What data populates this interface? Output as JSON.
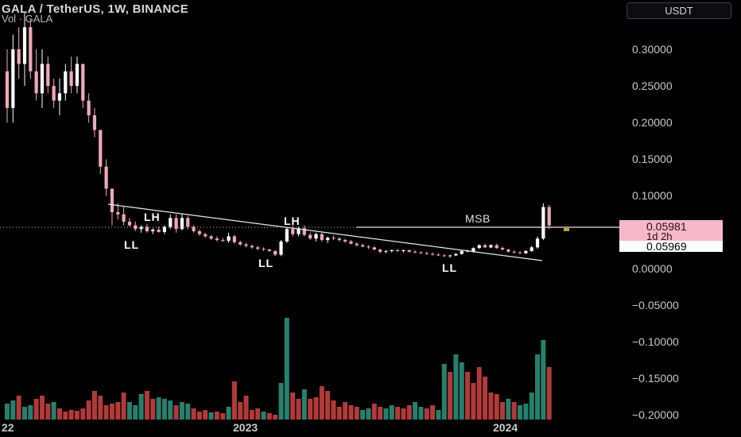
{
  "header": {
    "title": "GALA / TetherUS, 1W, BINANCE",
    "volume_label": "Vol · GALA"
  },
  "currency_button": "USDT",
  "price_axis": [
    "0.30000",
    "0.25000",
    "0.20000",
    "0.15000",
    "0.10000",
    "0.00000",
    "−0.05000",
    "−0.10000",
    "−0.15000",
    "−0.20000"
  ],
  "time_axis": [
    "22",
    "2023",
    "2024"
  ],
  "annotations": {
    "lh_left": "LH",
    "lh_right": "LH",
    "ll_1": "LL",
    "ll_2": "LL",
    "ll_3": "LL",
    "msb": "MSB"
  },
  "price_label": {
    "current": "0.05981",
    "countdown": "1d 2h",
    "last": "0.05969"
  },
  "colors": {
    "up": "#ffffff",
    "down": "#f0a8b8",
    "volume_up": "#26806e",
    "volume_down": "#b23a3a",
    "background": "#000000"
  },
  "chart_data": {
    "type": "candlestick",
    "title": "GALA / TetherUS, 1W, BINANCE",
    "ylim": [
      -0.2,
      0.35
    ],
    "candles": [
      [
        0.27,
        0.3,
        0.2,
        0.22
      ],
      [
        0.22,
        0.32,
        0.2,
        0.3
      ],
      [
        0.3,
        0.33,
        0.26,
        0.28
      ],
      [
        0.28,
        0.35,
        0.25,
        0.33
      ],
      [
        0.33,
        0.34,
        0.26,
        0.27
      ],
      [
        0.27,
        0.3,
        0.23,
        0.24
      ],
      [
        0.24,
        0.3,
        0.22,
        0.28
      ],
      [
        0.28,
        0.29,
        0.24,
        0.25
      ],
      [
        0.25,
        0.26,
        0.22,
        0.23
      ],
      [
        0.23,
        0.26,
        0.21,
        0.24
      ],
      [
        0.24,
        0.28,
        0.23,
        0.27
      ],
      [
        0.27,
        0.29,
        0.24,
        0.25
      ],
      [
        0.25,
        0.29,
        0.24,
        0.28
      ],
      [
        0.28,
        0.28,
        0.22,
        0.23
      ],
      [
        0.23,
        0.24,
        0.2,
        0.21
      ],
      [
        0.21,
        0.22,
        0.18,
        0.19
      ],
      [
        0.19,
        0.19,
        0.13,
        0.14
      ],
      [
        0.14,
        0.15,
        0.1,
        0.11
      ],
      [
        0.11,
        0.11,
        0.06,
        0.078
      ],
      [
        0.078,
        0.09,
        0.068,
        0.075
      ],
      [
        0.075,
        0.085,
        0.06,
        0.065
      ],
      [
        0.065,
        0.07,
        0.058,
        0.06
      ],
      [
        0.06,
        0.065,
        0.052,
        0.055
      ],
      [
        0.055,
        0.06,
        0.05,
        0.058
      ],
      [
        0.058,
        0.062,
        0.05,
        0.052
      ],
      [
        0.052,
        0.056,
        0.048,
        0.054
      ],
      [
        0.054,
        0.058,
        0.05,
        0.051
      ],
      [
        0.051,
        0.06,
        0.048,
        0.058
      ],
      [
        0.058,
        0.075,
        0.055,
        0.07
      ],
      [
        0.07,
        0.075,
        0.05,
        0.055
      ],
      [
        0.055,
        0.075,
        0.053,
        0.07
      ],
      [
        0.07,
        0.073,
        0.055,
        0.058
      ],
      [
        0.058,
        0.06,
        0.05,
        0.052
      ],
      [
        0.052,
        0.054,
        0.046,
        0.048
      ],
      [
        0.048,
        0.05,
        0.043,
        0.045
      ],
      [
        0.045,
        0.047,
        0.04,
        0.042
      ],
      [
        0.042,
        0.045,
        0.038,
        0.04
      ],
      [
        0.04,
        0.043,
        0.037,
        0.039
      ],
      [
        0.039,
        0.05,
        0.036,
        0.045
      ],
      [
        0.045,
        0.047,
        0.035,
        0.037
      ],
      [
        0.037,
        0.039,
        0.032,
        0.034
      ],
      [
        0.034,
        0.036,
        0.03,
        0.032
      ],
      [
        0.032,
        0.034,
        0.028,
        0.03
      ],
      [
        0.03,
        0.032,
        0.026,
        0.028
      ],
      [
        0.028,
        0.03,
        0.025,
        0.027
      ],
      [
        0.027,
        0.028,
        0.024,
        0.025
      ],
      [
        0.025,
        0.026,
        0.018,
        0.02
      ],
      [
        0.02,
        0.04,
        0.018,
        0.038
      ],
      [
        0.038,
        0.058,
        0.036,
        0.055
      ],
      [
        0.055,
        0.06,
        0.045,
        0.048
      ],
      [
        0.048,
        0.058,
        0.045,
        0.056
      ],
      [
        0.056,
        0.06,
        0.045,
        0.047
      ],
      [
        0.047,
        0.05,
        0.04,
        0.042
      ],
      [
        0.042,
        0.05,
        0.038,
        0.048
      ],
      [
        0.048,
        0.05,
        0.038,
        0.04
      ],
      [
        0.04,
        0.045,
        0.036,
        0.043
      ],
      [
        0.043,
        0.046,
        0.04,
        0.042
      ],
      [
        0.042,
        0.044,
        0.038,
        0.04
      ],
      [
        0.04,
        0.042,
        0.036,
        0.038
      ],
      [
        0.038,
        0.04,
        0.034,
        0.035
      ],
      [
        0.035,
        0.037,
        0.031,
        0.033
      ],
      [
        0.033,
        0.035,
        0.03,
        0.031
      ],
      [
        0.031,
        0.033,
        0.028,
        0.03
      ],
      [
        0.03,
        0.031,
        0.026,
        0.027
      ],
      [
        0.027,
        0.028,
        0.022,
        0.024
      ],
      [
        0.024,
        0.026,
        0.022,
        0.025
      ],
      [
        0.025,
        0.027,
        0.023,
        0.026
      ],
      [
        0.026,
        0.028,
        0.024,
        0.025
      ],
      [
        0.025,
        0.027,
        0.023,
        0.026
      ],
      [
        0.026,
        0.027,
        0.023,
        0.024
      ],
      [
        0.024,
        0.026,
        0.022,
        0.023
      ],
      [
        0.023,
        0.025,
        0.021,
        0.022
      ],
      [
        0.022,
        0.024,
        0.02,
        0.021
      ],
      [
        0.021,
        0.023,
        0.019,
        0.02
      ],
      [
        0.02,
        0.022,
        0.018,
        0.019
      ],
      [
        0.019,
        0.021,
        0.017,
        0.018
      ],
      [
        0.018,
        0.02,
        0.016,
        0.019
      ],
      [
        0.019,
        0.022,
        0.018,
        0.021
      ],
      [
        0.021,
        0.026,
        0.02,
        0.025
      ],
      [
        0.025,
        0.027,
        0.023,
        0.024
      ],
      [
        0.024,
        0.03,
        0.023,
        0.029
      ],
      [
        0.029,
        0.034,
        0.028,
        0.033
      ],
      [
        0.033,
        0.035,
        0.029,
        0.03
      ],
      [
        0.03,
        0.034,
        0.029,
        0.033
      ],
      [
        0.033,
        0.035,
        0.028,
        0.029
      ],
      [
        0.029,
        0.031,
        0.026,
        0.027
      ],
      [
        0.027,
        0.028,
        0.023,
        0.024
      ],
      [
        0.024,
        0.026,
        0.022,
        0.023
      ],
      [
        0.023,
        0.025,
        0.021,
        0.022
      ],
      [
        0.022,
        0.026,
        0.021,
        0.025
      ],
      [
        0.025,
        0.032,
        0.024,
        0.03
      ],
      [
        0.03,
        0.045,
        0.028,
        0.042
      ],
      [
        0.042,
        0.09,
        0.04,
        0.085
      ],
      [
        0.085,
        0.088,
        0.055,
        0.06
      ]
    ],
    "volume": [
      [
        20,
        1
      ],
      [
        24,
        1
      ],
      [
        30,
        0
      ],
      [
        16,
        1
      ],
      [
        18,
        1
      ],
      [
        26,
        0
      ],
      [
        30,
        0
      ],
      [
        20,
        0
      ],
      [
        22,
        1
      ],
      [
        14,
        0
      ],
      [
        10,
        0
      ],
      [
        12,
        0
      ],
      [
        11,
        0
      ],
      [
        14,
        0
      ],
      [
        24,
        0
      ],
      [
        36,
        0
      ],
      [
        30,
        0
      ],
      [
        18,
        0
      ],
      [
        20,
        0
      ],
      [
        22,
        0
      ],
      [
        34,
        0
      ],
      [
        22,
        1
      ],
      [
        18,
        1
      ],
      [
        32,
        1
      ],
      [
        36,
        0
      ],
      [
        26,
        0
      ],
      [
        28,
        1
      ],
      [
        26,
        1
      ],
      [
        24,
        1
      ],
      [
        18,
        0
      ],
      [
        22,
        1
      ],
      [
        20,
        1
      ],
      [
        14,
        0
      ],
      [
        10,
        0
      ],
      [
        12,
        0
      ],
      [
        9,
        1
      ],
      [
        10,
        0
      ],
      [
        8,
        0
      ],
      [
        16,
        1
      ],
      [
        48,
        0
      ],
      [
        22,
        0
      ],
      [
        30,
        0
      ],
      [
        12,
        0
      ],
      [
        14,
        0
      ],
      [
        10,
        1
      ],
      [
        8,
        0
      ],
      [
        6,
        0
      ],
      [
        46,
        1
      ],
      [
        128,
        1
      ],
      [
        34,
        0
      ],
      [
        26,
        0
      ],
      [
        38,
        1
      ],
      [
        26,
        0
      ],
      [
        28,
        0
      ],
      [
        42,
        0
      ],
      [
        36,
        0
      ],
      [
        24,
        0
      ],
      [
        16,
        0
      ],
      [
        22,
        0
      ],
      [
        18,
        0
      ],
      [
        16,
        0
      ],
      [
        12,
        1
      ],
      [
        14,
        1
      ],
      [
        20,
        0
      ],
      [
        16,
        0
      ],
      [
        14,
        1
      ],
      [
        18,
        1
      ],
      [
        16,
        0
      ],
      [
        14,
        0
      ],
      [
        18,
        0
      ],
      [
        22,
        1
      ],
      [
        16,
        1
      ],
      [
        14,
        0
      ],
      [
        18,
        0
      ],
      [
        12,
        1
      ],
      [
        70,
        1
      ],
      [
        60,
        0
      ],
      [
        82,
        1
      ],
      [
        72,
        1
      ],
      [
        60,
        0
      ],
      [
        46,
        0
      ],
      [
        66,
        0
      ],
      [
        54,
        0
      ],
      [
        34,
        0
      ],
      [
        32,
        0
      ],
      [
        22,
        0
      ],
      [
        26,
        1
      ],
      [
        22,
        0
      ],
      [
        18,
        1
      ],
      [
        20,
        1
      ],
      [
        34,
        1
      ],
      [
        82,
        1
      ],
      [
        100,
        1
      ],
      [
        66,
        0
      ]
    ],
    "x_labels": [
      "22",
      "2023",
      "2024"
    ],
    "y_ticks": [
      0.3,
      0.25,
      0.2,
      0.15,
      0.1,
      0.0,
      -0.05,
      -0.1,
      -0.15,
      -0.2
    ],
    "current_price": 0.05981,
    "last_price": 0.05969
  }
}
